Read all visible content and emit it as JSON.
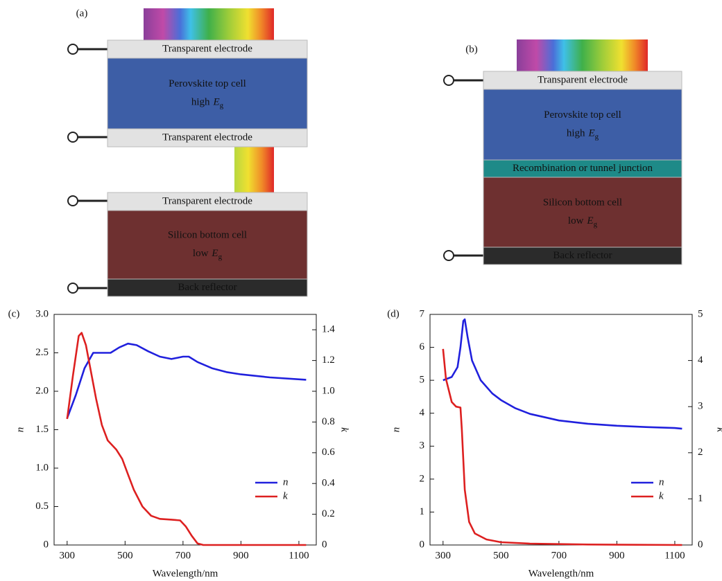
{
  "diagrams": [
    {
      "label": "(a)",
      "layers": [
        {
          "lines": [
            "Transparent electrode"
          ]
        },
        {
          "lines": [
            "Perovskite top cell",
            {
              "text": "high",
              "symbol": "E",
              "sub": "g"
            }
          ]
        },
        {
          "lines": [
            "Transparent electrode"
          ]
        },
        {
          "lines": [
            "Transparent electrode"
          ]
        },
        {
          "lines": [
            "Silicon bottom cell",
            {
              "text": "low",
              "symbol": "E",
              "sub": "g"
            }
          ]
        },
        {
          "lines": [
            "Back reflector"
          ]
        }
      ]
    },
    {
      "label": "(b)",
      "layers": [
        {
          "lines": [
            "Transparent electrode"
          ]
        },
        {
          "lines": [
            "Perovskite top cell",
            {
              "text": "high",
              "symbol": "E",
              "sub": "g"
            }
          ]
        },
        {
          "lines": [
            "Recombination or tunnel junction"
          ]
        },
        {
          "lines": [
            "Silicon bottom cell",
            {
              "text": "low",
              "symbol": "E",
              "sub": "g"
            }
          ]
        },
        {
          "lines": [
            "Back reflector"
          ]
        }
      ]
    }
  ],
  "chart_data": [
    {
      "type": "line",
      "label": "(c)",
      "x_label": "Wavelength/nm",
      "y_label": "n",
      "y2_label": "k",
      "xlim": [
        255,
        1160
      ],
      "xticks": [
        300,
        500,
        700,
        900,
        1100
      ],
      "ylim": [
        0,
        3
      ],
      "yticks": [
        0,
        0.5,
        {
          "value": 1,
          "label": "1.0"
        },
        1.5,
        {
          "value": 2,
          "label": "2.0"
        },
        2.5,
        {
          "value": 3,
          "label": "3.0"
        }
      ],
      "y2lim": [
        0,
        1.5
      ],
      "y2ticks": [
        0,
        0.2,
        0.4,
        0.6,
        0.8,
        {
          "value": 1,
          "label": "1.0"
        },
        1.2,
        1.4
      ],
      "legend": "lower right",
      "series": [
        {
          "name": "n",
          "color": "#2020dd",
          "axis": "y",
          "x": [
            300,
            330,
            360,
            390,
            420,
            450,
            480,
            510,
            540,
            580,
            620,
            660,
            700,
            720,
            750,
            800,
            850,
            900,
            1000,
            1125
          ],
          "values": [
            1.65,
            1.95,
            2.3,
            2.5,
            2.5,
            2.5,
            2.57,
            2.62,
            2.6,
            2.52,
            2.45,
            2.42,
            2.45,
            2.45,
            2.38,
            2.3,
            2.25,
            2.22,
            2.18,
            2.15
          ]
        },
        {
          "name": "k",
          "color": "#dd2020",
          "axis": "y2",
          "x": [
            300,
            320,
            340,
            350,
            365,
            380,
            400,
            420,
            440,
            470,
            490,
            510,
            530,
            560,
            590,
            620,
            660,
            690,
            710,
            730,
            750,
            770,
            1125
          ],
          "values": [
            0.82,
            1.1,
            1.36,
            1.38,
            1.3,
            1.15,
            0.95,
            0.78,
            0.68,
            0.62,
            0.56,
            0.46,
            0.36,
            0.25,
            0.19,
            0.17,
            0.165,
            0.16,
            0.12,
            0.06,
            0.01,
            0,
            0
          ]
        }
      ]
    },
    {
      "type": "line",
      "label": "(d)",
      "x_label": "Wavelength/nm",
      "y_label": "n",
      "y2_label": "k",
      "xlim": [
        255,
        1160
      ],
      "xticks": [
        300,
        500,
        700,
        900,
        1100
      ],
      "ylim": [
        0,
        7
      ],
      "yticks": [
        0,
        1,
        2,
        3,
        4,
        5,
        6,
        7
      ],
      "y2lim": [
        0,
        5
      ],
      "y2ticks": [
        0,
        1,
        2,
        3,
        4,
        5
      ],
      "legend": "lower right",
      "series": [
        {
          "name": "n",
          "color": "#2020dd",
          "axis": "y",
          "x": [
            300,
            330,
            350,
            360,
            370,
            375,
            385,
            400,
            430,
            470,
            500,
            550,
            600,
            700,
            800,
            900,
            1000,
            1100,
            1125
          ],
          "values": [
            5.0,
            5.1,
            5.4,
            6.0,
            6.8,
            6.85,
            6.3,
            5.6,
            5.0,
            4.6,
            4.4,
            4.15,
            3.98,
            3.78,
            3.68,
            3.62,
            3.58,
            3.55,
            3.53
          ]
        },
        {
          "name": "k",
          "color": "#dd2020",
          "axis": "y2",
          "x": [
            300,
            310,
            330,
            345,
            360,
            365,
            375,
            390,
            410,
            450,
            500,
            600,
            800,
            1125
          ],
          "values": [
            4.25,
            3.6,
            3.1,
            3.0,
            2.98,
            2.5,
            1.2,
            0.5,
            0.25,
            0.12,
            0.06,
            0.03,
            0.01,
            0
          ]
        }
      ]
    }
  ]
}
